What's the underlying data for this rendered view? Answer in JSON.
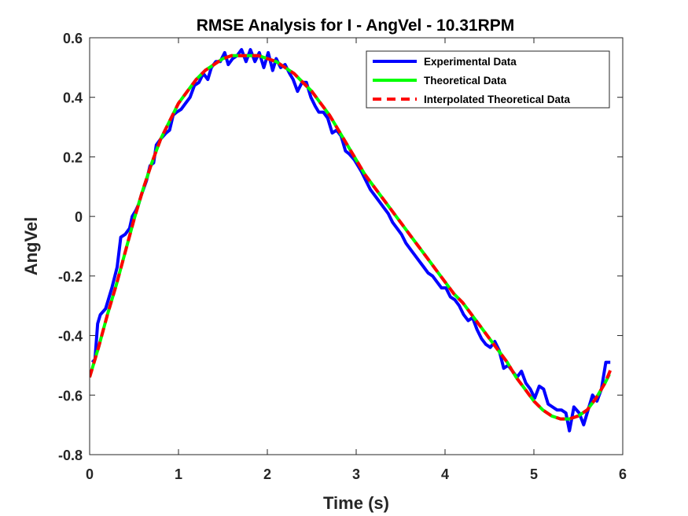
{
  "chart_data": {
    "type": "line",
    "title": "RMSE Analysis for I - AngVel - 10.31RPM",
    "xlabel": "Time (s)",
    "ylabel": "AngVel",
    "xlim": [
      0,
      6
    ],
    "ylim": [
      -0.8,
      0.6
    ],
    "xticks": [
      0,
      1,
      2,
      3,
      4,
      5,
      6
    ],
    "yticks": [
      -0.8,
      -0.6,
      -0.4,
      -0.2,
      0,
      0.2,
      0.4,
      0.6
    ],
    "grid": false,
    "legend_position": "top-right",
    "series": [
      {
        "name": "Experimental Data",
        "color": "#0000FF",
        "style": "solid",
        "x": [
          0.03,
          0.06,
          0.09,
          0.12,
          0.18,
          0.25,
          0.31,
          0.35,
          0.4,
          0.45,
          0.48,
          0.52,
          0.55,
          0.58,
          0.64,
          0.68,
          0.72,
          0.75,
          0.8,
          0.86,
          0.9,
          0.94,
          0.98,
          1.03,
          1.08,
          1.13,
          1.18,
          1.23,
          1.28,
          1.33,
          1.37,
          1.42,
          1.47,
          1.52,
          1.56,
          1.61,
          1.66,
          1.71,
          1.76,
          1.81,
          1.86,
          1.91,
          1.96,
          2.01,
          2.06,
          2.1,
          2.15,
          2.2,
          2.25,
          2.29,
          2.34,
          2.39,
          2.44,
          2.49,
          2.54,
          2.58,
          2.63,
          2.68,
          2.73,
          2.78,
          2.83,
          2.88,
          2.92,
          2.98,
          3.02,
          3.06,
          3.11,
          3.16,
          3.21,
          3.26,
          3.31,
          3.36,
          3.41,
          3.46,
          3.51,
          3.56,
          3.61,
          3.66,
          3.71,
          3.76,
          3.81,
          3.86,
          3.91,
          3.96,
          4.01,
          4.06,
          4.11,
          4.16,
          4.21,
          4.26,
          4.31,
          4.36,
          4.41,
          4.46,
          4.51,
          4.56,
          4.61,
          4.66,
          4.71,
          4.76,
          4.81,
          4.86,
          4.91,
          4.96,
          5.01,
          5.06,
          5.11,
          5.16,
          5.21,
          5.26,
          5.31,
          5.36,
          5.4,
          5.45,
          5.51,
          5.56,
          5.61,
          5.66,
          5.71,
          5.76,
          5.81,
          5.86
        ],
        "y": [
          -0.49,
          -0.48,
          -0.36,
          -0.33,
          -0.31,
          -0.24,
          -0.17,
          -0.07,
          -0.06,
          -0.04,
          0.0,
          0.02,
          0.04,
          0.07,
          0.12,
          0.17,
          0.18,
          0.24,
          0.26,
          0.28,
          0.29,
          0.34,
          0.35,
          0.36,
          0.38,
          0.4,
          0.44,
          0.45,
          0.48,
          0.46,
          0.5,
          0.52,
          0.52,
          0.55,
          0.51,
          0.53,
          0.54,
          0.56,
          0.52,
          0.56,
          0.52,
          0.55,
          0.5,
          0.55,
          0.49,
          0.53,
          0.5,
          0.51,
          0.48,
          0.46,
          0.42,
          0.45,
          0.45,
          0.4,
          0.37,
          0.35,
          0.35,
          0.33,
          0.28,
          0.29,
          0.27,
          0.22,
          0.21,
          0.19,
          0.17,
          0.15,
          0.12,
          0.09,
          0.07,
          0.05,
          0.03,
          0.01,
          -0.02,
          -0.04,
          -0.06,
          -0.09,
          -0.11,
          -0.13,
          -0.15,
          -0.17,
          -0.19,
          -0.2,
          -0.22,
          -0.24,
          -0.24,
          -0.27,
          -0.28,
          -0.3,
          -0.33,
          -0.35,
          -0.34,
          -0.38,
          -0.41,
          -0.43,
          -0.44,
          -0.42,
          -0.45,
          -0.51,
          -0.5,
          -0.52,
          -0.54,
          -0.52,
          -0.56,
          -0.58,
          -0.61,
          -0.57,
          -0.58,
          -0.63,
          -0.64,
          -0.65,
          -0.65,
          -0.66,
          -0.72,
          -0.64,
          -0.66,
          -0.7,
          -0.65,
          -0.6,
          -0.62,
          -0.58,
          -0.49,
          -0.49
        ]
      },
      {
        "name": "Theoretical Data",
        "color": "#00FF00",
        "style": "solid",
        "x": [
          0.0,
          0.1,
          0.2,
          0.3,
          0.4,
          0.5,
          0.6,
          0.7,
          0.8,
          0.9,
          1.0,
          1.1,
          1.2,
          1.3,
          1.4,
          1.5,
          1.6,
          1.7,
          1.8,
          1.9,
          2.0,
          2.1,
          2.2,
          2.3,
          2.4,
          2.5,
          2.6,
          2.7,
          2.8,
          2.9,
          3.0,
          3.1,
          3.2,
          3.3,
          3.4,
          3.5,
          3.6,
          3.7,
          3.8,
          3.9,
          4.0,
          4.1,
          4.2,
          4.3,
          4.4,
          4.5,
          4.6,
          4.7,
          4.8,
          4.9,
          5.0,
          5.1,
          5.2,
          5.3,
          5.4,
          5.5,
          5.6,
          5.7,
          5.8,
          5.85
        ],
        "y": [
          -0.54,
          -0.44,
          -0.33,
          -0.23,
          -0.12,
          -0.01,
          0.09,
          0.18,
          0.26,
          0.32,
          0.38,
          0.42,
          0.46,
          0.49,
          0.51,
          0.53,
          0.54,
          0.54,
          0.54,
          0.54,
          0.53,
          0.52,
          0.5,
          0.48,
          0.45,
          0.42,
          0.38,
          0.34,
          0.29,
          0.24,
          0.19,
          0.14,
          0.1,
          0.06,
          0.02,
          -0.02,
          -0.06,
          -0.1,
          -0.14,
          -0.18,
          -0.22,
          -0.26,
          -0.29,
          -0.33,
          -0.37,
          -0.41,
          -0.45,
          -0.49,
          -0.54,
          -0.58,
          -0.62,
          -0.65,
          -0.67,
          -0.68,
          -0.68,
          -0.67,
          -0.65,
          -0.61,
          -0.56,
          -0.53
        ]
      },
      {
        "name": "Interpolated Theoretical Data",
        "color": "#FF0000",
        "style": "dashed",
        "x": [
          0.0,
          0.1,
          0.2,
          0.3,
          0.4,
          0.5,
          0.6,
          0.7,
          0.8,
          0.9,
          1.0,
          1.1,
          1.2,
          1.3,
          1.4,
          1.5,
          1.6,
          1.7,
          1.8,
          1.9,
          2.0,
          2.1,
          2.2,
          2.3,
          2.4,
          2.5,
          2.6,
          2.7,
          2.8,
          2.9,
          3.0,
          3.1,
          3.2,
          3.3,
          3.4,
          3.5,
          3.6,
          3.7,
          3.8,
          3.9,
          4.0,
          4.1,
          4.2,
          4.3,
          4.4,
          4.5,
          4.6,
          4.7,
          4.8,
          4.9,
          5.0,
          5.1,
          5.2,
          5.3,
          5.4,
          5.5,
          5.6,
          5.7,
          5.8,
          5.87
        ],
        "y": [
          -0.54,
          -0.44,
          -0.33,
          -0.23,
          -0.12,
          -0.01,
          0.09,
          0.18,
          0.26,
          0.32,
          0.38,
          0.42,
          0.46,
          0.49,
          0.51,
          0.53,
          0.54,
          0.54,
          0.54,
          0.54,
          0.53,
          0.52,
          0.5,
          0.48,
          0.45,
          0.42,
          0.38,
          0.34,
          0.29,
          0.24,
          0.19,
          0.14,
          0.1,
          0.06,
          0.02,
          -0.02,
          -0.06,
          -0.1,
          -0.14,
          -0.18,
          -0.22,
          -0.26,
          -0.29,
          -0.33,
          -0.37,
          -0.41,
          -0.45,
          -0.49,
          -0.54,
          -0.58,
          -0.62,
          -0.65,
          -0.67,
          -0.68,
          -0.68,
          -0.67,
          -0.65,
          -0.61,
          -0.56,
          -0.51
        ]
      }
    ]
  }
}
